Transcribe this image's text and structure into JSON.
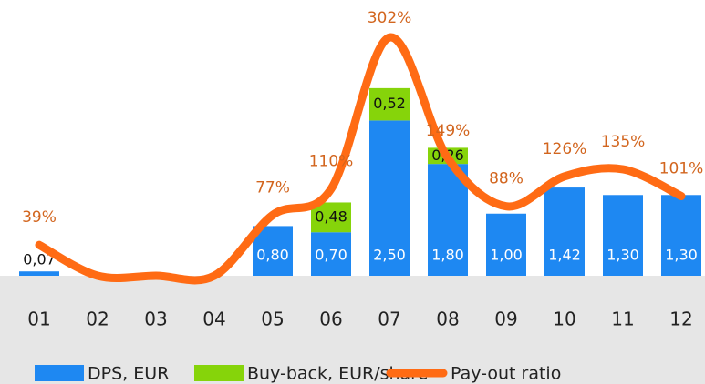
{
  "chart_data": {
    "type": "bar-line",
    "categories": [
      "01",
      "02",
      "03",
      "04",
      "05",
      "06",
      "07",
      "08",
      "09",
      "10",
      "11",
      "12"
    ],
    "series": [
      {
        "name": "DPS, EUR",
        "type": "bar",
        "color": "#1e88f2",
        "values": [
          0.07,
          null,
          null,
          null,
          0.8,
          0.7,
          2.5,
          1.8,
          1.0,
          1.42,
          1.3,
          1.3
        ],
        "value_labels": [
          "0,07",
          null,
          null,
          null,
          "0,80",
          "0,70",
          "2,50",
          "1,80",
          "1,00",
          "1,42",
          "1,30",
          "1,30"
        ]
      },
      {
        "name": "Buy-back, EUR/share",
        "type": "bar",
        "color": "#86d40a",
        "values": [
          null,
          null,
          null,
          null,
          null,
          0.48,
          0.52,
          0.26,
          null,
          null,
          null,
          null
        ],
        "value_labels": [
          null,
          null,
          null,
          null,
          null,
          "0,48",
          "0,52",
          "0,26",
          null,
          null,
          null,
          null
        ]
      },
      {
        "name": "Pay-out ratio",
        "type": "line",
        "axis": "y2",
        "color": "#ff6b14",
        "values": [
          39,
          0,
          0,
          0,
          77,
          110,
          302,
          149,
          88,
          126,
          135,
          101
        ],
        "value_labels": [
          "39%",
          null,
          null,
          null,
          "77%",
          "110%",
          "302%",
          "149%",
          "88%",
          "126%",
          "135%",
          "101%"
        ]
      }
    ],
    "ylim": [
      0,
      4
    ],
    "y2lim": [
      0,
      315
    ]
  }
}
